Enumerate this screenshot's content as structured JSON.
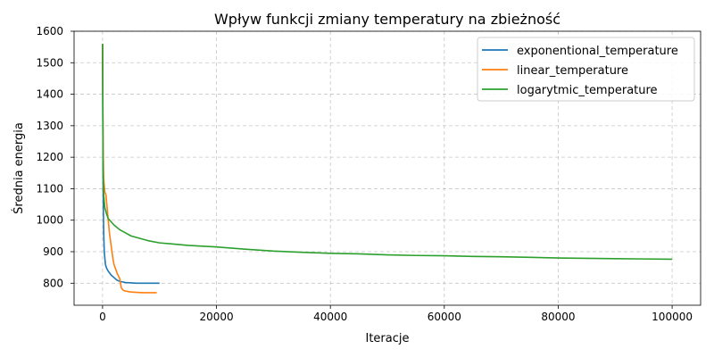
{
  "chart_data": {
    "type": "line",
    "title": "Wpływ funkcji zmiany temperatury na zbieżność",
    "xlabel": "Iteracje",
    "ylabel": "Średnia energia",
    "xlim": [
      -5000,
      105000
    ],
    "ylim": [
      730,
      1600
    ],
    "xticks": [
      0,
      20000,
      40000,
      60000,
      80000,
      100000
    ],
    "yticks": [
      800,
      900,
      1000,
      1100,
      1200,
      1300,
      1400,
      1500,
      1600
    ],
    "grid": true,
    "legend_position": "top-right",
    "series": [
      {
        "name": "exponentional_temperature",
        "color": "#1f77b4",
        "x": [
          0,
          50,
          100,
          200,
          300,
          500,
          700,
          1000,
          1500,
          2000,
          2500,
          3000,
          3500,
          4000,
          5000,
          6000,
          7000,
          8000,
          9000,
          10000
        ],
        "y": [
          1560,
          1300,
          1100,
          960,
          900,
          860,
          848,
          838,
          826,
          818,
          810,
          806,
          804,
          802,
          801,
          800,
          800,
          800,
          800,
          800
        ]
      },
      {
        "name": "linear_temperature",
        "color": "#ff7f0e",
        "x": [
          0,
          100,
          200,
          400,
          600,
          800,
          1000,
          1200,
          1500,
          1800,
          2000,
          2300,
          2600,
          3000,
          3300,
          3600,
          4000,
          5000,
          6000,
          7000,
          8000,
          9500
        ],
        "y": [
          1560,
          1230,
          1130,
          1090,
          1080,
          1040,
          1000,
          960,
          920,
          880,
          860,
          845,
          830,
          815,
          785,
          778,
          775,
          772,
          771,
          770,
          770,
          770
        ]
      },
      {
        "name": "logarytmic_temperature",
        "color": "#2ca02c",
        "x": [
          0,
          100,
          200,
          400,
          700,
          1000,
          1500,
          2000,
          3000,
          4000,
          5000,
          6000,
          8000,
          10000,
          12000,
          15000,
          20000,
          25000,
          30000,
          35000,
          40000,
          45000,
          50000,
          55000,
          60000,
          65000,
          70000,
          75000,
          80000,
          85000,
          90000,
          95000,
          100000
        ],
        "y": [
          1560,
          1150,
          1080,
          1040,
          1020,
          1005,
          995,
          985,
          970,
          960,
          950,
          945,
          935,
          928,
          925,
          920,
          915,
          908,
          902,
          898,
          895,
          893,
          890,
          888,
          887,
          885,
          884,
          882,
          880,
          879,
          878,
          877,
          876
        ]
      }
    ]
  }
}
